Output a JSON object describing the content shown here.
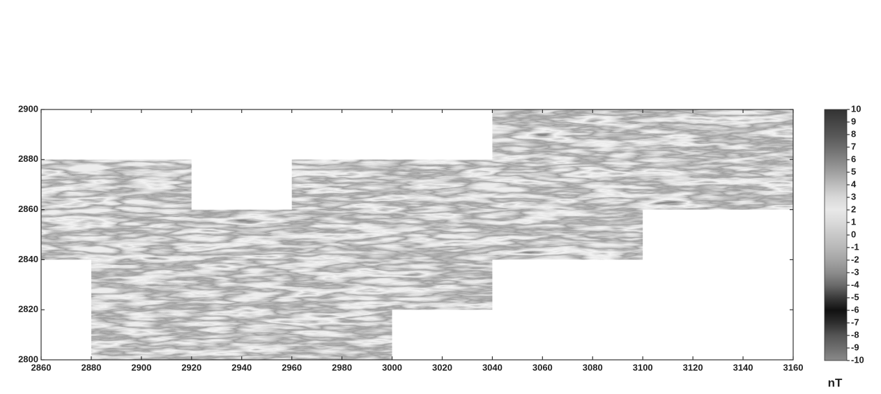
{
  "chart_data": {
    "type": "heatmap",
    "xlim": [
      2860,
      3160
    ],
    "xticks": [
      2860,
      2880,
      2900,
      2920,
      2940,
      2960,
      2980,
      3000,
      3020,
      3040,
      3060,
      3080,
      3100,
      3120,
      3140,
      3160
    ],
    "ylim": [
      2800,
      2900
    ],
    "yticks": [
      2800,
      2820,
      2840,
      2860,
      2880,
      2900
    ],
    "survey_blocks": [
      {
        "x": [
          2860,
          2880
        ],
        "y": [
          2840,
          2880
        ]
      },
      {
        "x": [
          2880,
          2920
        ],
        "y": [
          2800,
          2880
        ]
      },
      {
        "x": [
          2920,
          2960
        ],
        "y": [
          2800,
          2860
        ]
      },
      {
        "x": [
          2960,
          3000
        ],
        "y": [
          2800,
          2880
        ]
      },
      {
        "x": [
          3000,
          3040
        ],
        "y": [
          2820,
          2880
        ]
      },
      {
        "x": [
          3040,
          3100
        ],
        "y": [
          2840,
          2900
        ]
      },
      {
        "x": [
          3100,
          3160
        ],
        "y": [
          2860,
          2900
        ]
      }
    ],
    "colorbar": {
      "label": "nT",
      "lim": [
        -10,
        10
      ],
      "ticks": [
        -10,
        -9,
        -8,
        -7,
        -6,
        -5,
        -4,
        -3,
        -2,
        -1,
        0,
        1,
        2,
        3,
        4,
        5,
        6,
        7,
        8,
        9,
        10
      ],
      "colors": [
        "#8a8a8a",
        "#6e6e6e",
        "#555555",
        "#2e2e2e",
        "#111111",
        "#3a3a3a",
        "#6a6a6a",
        "#8c8c8c",
        "#a4a4a4",
        "#b8b8b8",
        "#c8c8c8",
        "#dadada",
        "#e8e8e8",
        "#d8d8d8",
        "#bdbdbd",
        "#a0a0a0",
        "#858585",
        "#6c6c6c",
        "#565656",
        "#444444",
        "#333333"
      ]
    }
  }
}
